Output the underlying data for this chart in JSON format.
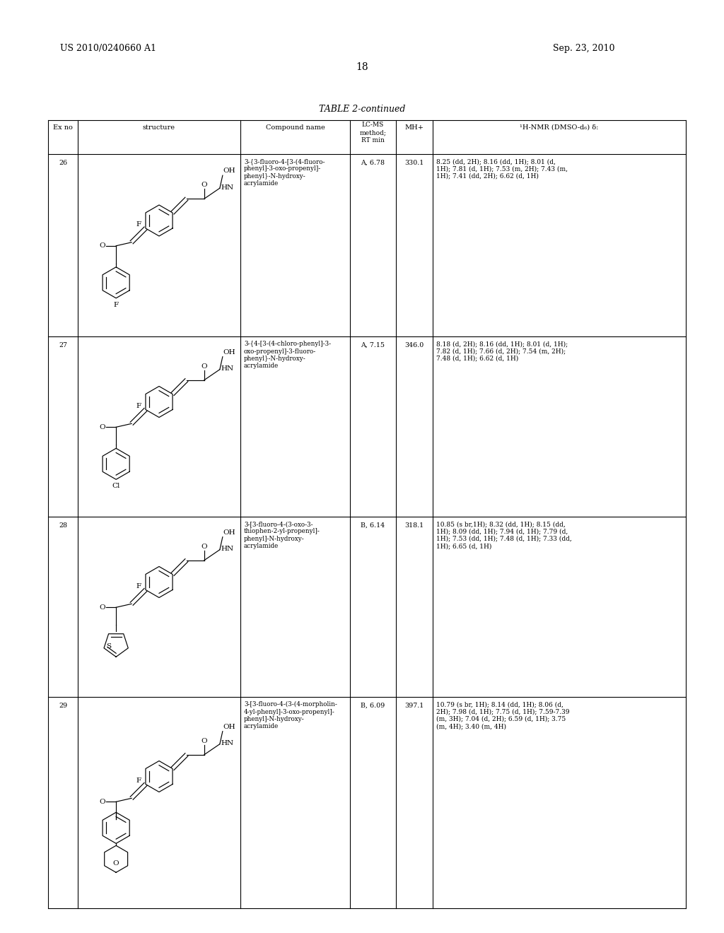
{
  "patent_number": "US 2010/0240660 A1",
  "date": "Sep. 23, 2010",
  "page_number": "18",
  "table_title": "TABLE 2-continued",
  "rows": [
    {
      "ex_no": "26",
      "compound_name": "3-{3-fluoro-4-[3-(4-fluoro-\nphenyl]-3-oxo-propenyl]-\nphenyl}-N-hydroxy-\nacrylamide",
      "lc_ms": "A, 6.78",
      "mh_plus": "330.1",
      "nmr": "8.25 (dd, 2H); 8.16 (dd, 1H); 8.01 (d,\n1H); 7.81 (d, 1H); 7.53 (m, 2H); 7.43 (m,\n1H); 7.41 (dd, 2H); 6.62 (d, 1H)",
      "bottom_sub": "F",
      "bottom_ring": "phenyl"
    },
    {
      "ex_no": "27",
      "compound_name": "3-{4-[3-(4-chloro-phenyl]-3-\noxo-propenyl]-3-fluoro-\nphenyl}-N-hydroxy-\nacrylamide",
      "lc_ms": "A, 7.15",
      "mh_plus": "346.0",
      "nmr": "8.18 (d, 2H); 8.16 (dd, 1H); 8.01 (d, 1H);\n7.82 (d, 1H); 7.66 (d, 2H); 7.54 (m, 2H);\n7.48 (d, 1H); 6.62 (d, 1H)",
      "bottom_sub": "Cl",
      "bottom_ring": "phenyl"
    },
    {
      "ex_no": "28",
      "compound_name": "3-[3-fluoro-4-(3-oxo-3-\nthiophen-2-yl-propenyl]-\nphenyl]-N-hydroxy-\nacrylamide",
      "lc_ms": "B, 6.14",
      "mh_plus": "318.1",
      "nmr": "10.85 (s br,1H); 8.32 (dd, 1H); 8.15 (dd,\n1H); 8.09 (dd, 1H); 7.94 (d, 1H); 7.79 (d,\n1H); 7.53 (dd, 1H); 7.48 (d, 1H); 7.33 (dd,\n1H); 6.65 (d, 1H)",
      "bottom_sub": "S",
      "bottom_ring": "thiophene"
    },
    {
      "ex_no": "29",
      "compound_name": "3-[3-fluoro-4-(3-(4-morpholin-\n4-yl-phenyl]-3-oxo-propenyl]-\nphenyl]-N-hydroxy-\nacrylamide",
      "lc_ms": "B, 6.09",
      "mh_plus": "397.1",
      "nmr": "10.79 (s br, 1H); 8.14 (dd, 1H); 8.06 (d,\n2H); 7.98 (d, 1H); 7.75 (d, 1H); 7.59-7.39\n(m, 3H); 7.04 (d, 2H); 6.59 (d, 1H); 3.75\n(m, 4H); 3.40 (m, 4H)",
      "bottom_sub": "O",
      "bottom_ring": "morpholine+phenyl"
    }
  ],
  "bg_color": "#ffffff",
  "text_color": "#000000",
  "line_color": "#000000"
}
